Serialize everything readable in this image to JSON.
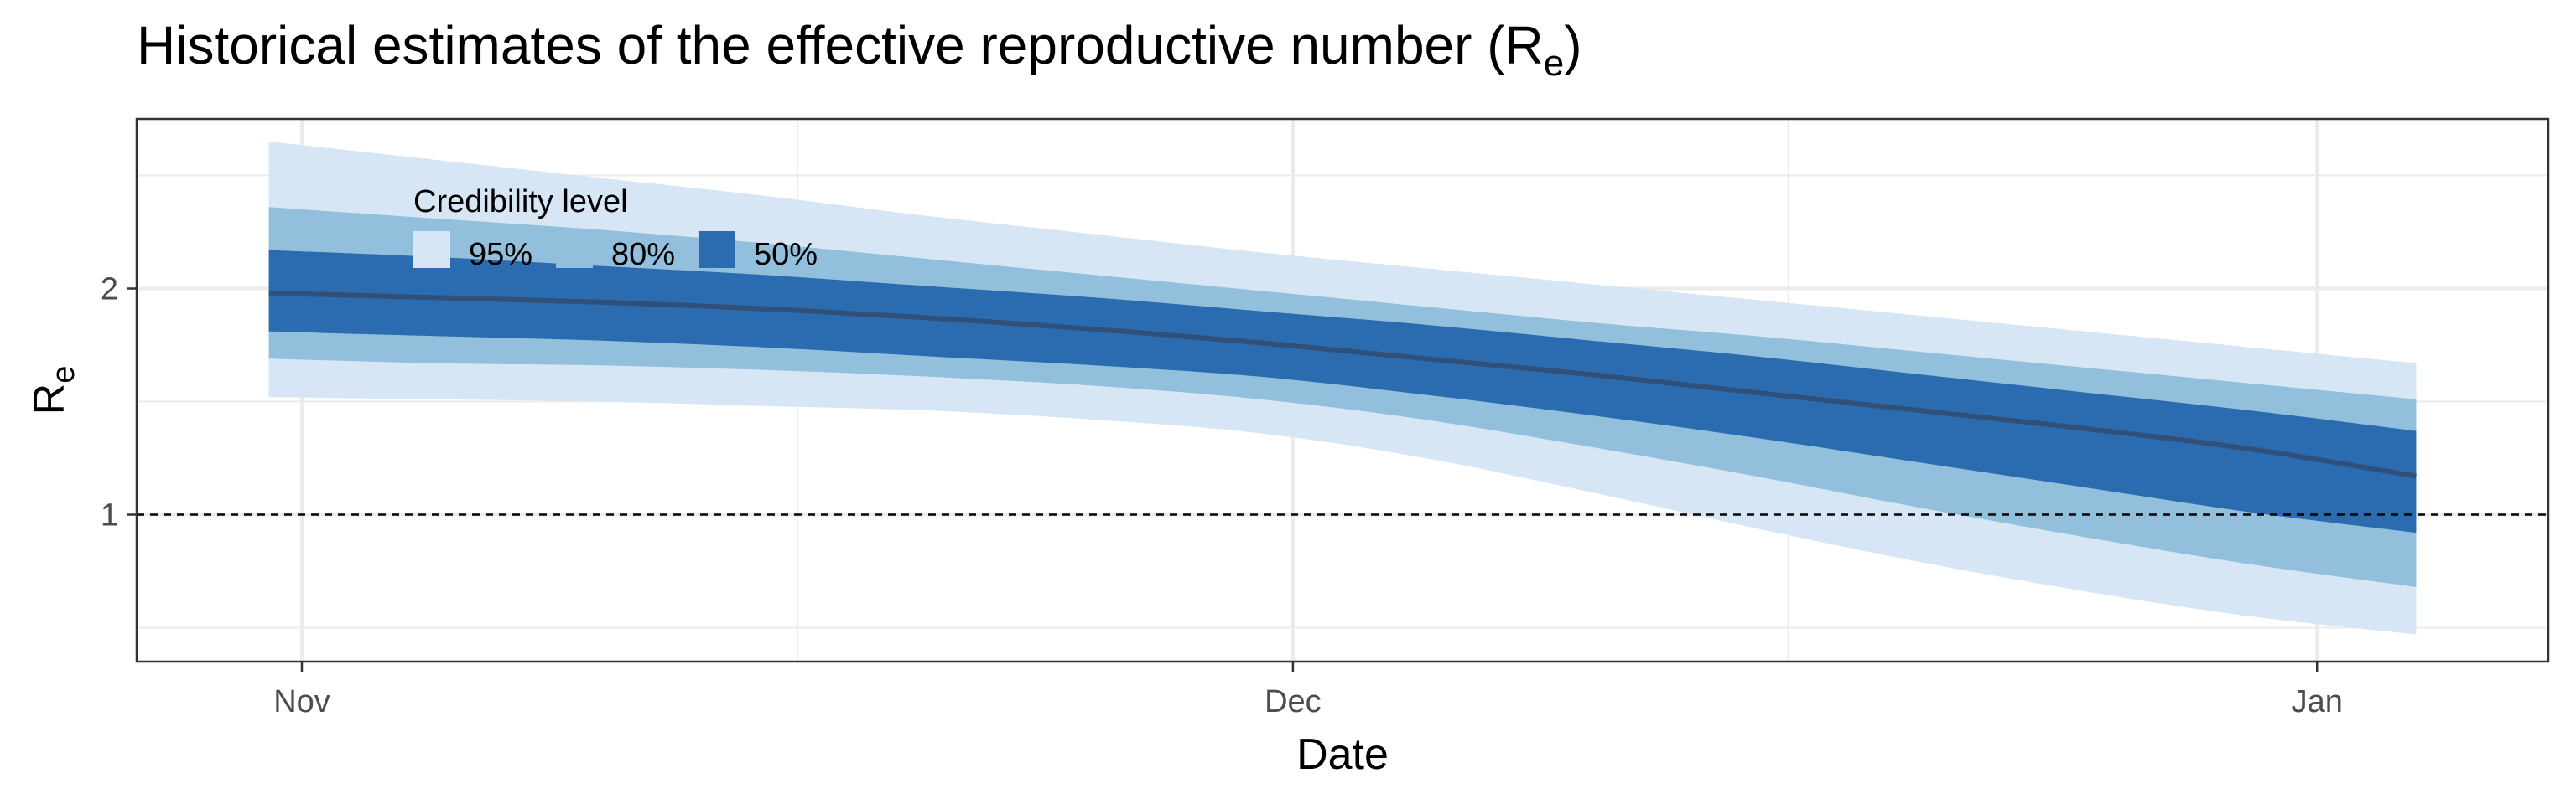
{
  "title_main": "Historical estimates of the effective reproductive number (R",
  "title_sub": "e",
  "title_close": ")",
  "chart_data": {
    "type": "area",
    "title": "Historical estimates of the effective reproductive number (Re)",
    "xlabel": "Date",
    "ylabel_main": "R",
    "ylabel_sub": "e",
    "x_ticks": [
      "Nov",
      "Dec",
      "Jan"
    ],
    "x_tick_values": [
      "2020-11-01",
      "2020-12-01",
      "2021-01-01"
    ],
    "xlim": [
      "2020-10-27",
      "2021-01-08"
    ],
    "y_ticks": [
      1,
      2
    ],
    "ylim": [
      0.35,
      2.75
    ],
    "grid": true,
    "reference_line": {
      "y": 1,
      "style": "dashed"
    },
    "legend": {
      "title": "Credibility level",
      "position": "top-left inside",
      "entries": [
        {
          "label": "95%",
          "color": "#d6e6f4"
        },
        {
          "label": "80%",
          "color": "#92bfdb"
        },
        {
          "label": "50%",
          "color": "#2b6cb0"
        }
      ]
    },
    "colors": {
      "band95": "#d6e6f4",
      "band80": "#92bfdb",
      "band50": "#2b6cb0",
      "median": "#30507a",
      "grid": "#ebebeb",
      "panel_border": "#333333"
    },
    "x": [
      "2020-10-31",
      "2020-11-05",
      "2020-11-10",
      "2020-11-15",
      "2020-11-20",
      "2020-11-25",
      "2020-11-30",
      "2020-12-05",
      "2020-12-10",
      "2020-12-15",
      "2020-12-20",
      "2020-12-25",
      "2020-12-30",
      "2021-01-04"
    ],
    "series": [
      {
        "name": "95%",
        "lower": [
          1.52,
          1.51,
          1.5,
          1.48,
          1.46,
          1.42,
          1.36,
          1.25,
          1.1,
          0.94,
          0.79,
          0.66,
          0.55,
          0.47
        ],
        "upper": [
          2.65,
          2.57,
          2.49,
          2.41,
          2.32,
          2.24,
          2.16,
          2.09,
          2.02,
          1.95,
          1.88,
          1.81,
          1.74,
          1.67
        ]
      },
      {
        "name": "80%",
        "lower": [
          1.69,
          1.67,
          1.66,
          1.64,
          1.61,
          1.57,
          1.51,
          1.42,
          1.3,
          1.17,
          1.03,
          0.9,
          0.78,
          0.68
        ],
        "upper": [
          2.36,
          2.31,
          2.26,
          2.2,
          2.13,
          2.06,
          1.99,
          1.92,
          1.85,
          1.79,
          1.72,
          1.65,
          1.58,
          1.51
        ]
      },
      {
        "name": "50%",
        "lower": [
          1.81,
          1.79,
          1.77,
          1.74,
          1.7,
          1.66,
          1.61,
          1.53,
          1.44,
          1.34,
          1.23,
          1.12,
          1.01,
          0.92
        ],
        "upper": [
          2.17,
          2.14,
          2.1,
          2.06,
          2.01,
          1.96,
          1.9,
          1.84,
          1.77,
          1.7,
          1.62,
          1.54,
          1.46,
          1.37
        ]
      },
      {
        "name": "median",
        "values": [
          1.98,
          1.96,
          1.94,
          1.91,
          1.87,
          1.82,
          1.76,
          1.69,
          1.62,
          1.54,
          1.46,
          1.38,
          1.29,
          1.17
        ]
      }
    ]
  }
}
